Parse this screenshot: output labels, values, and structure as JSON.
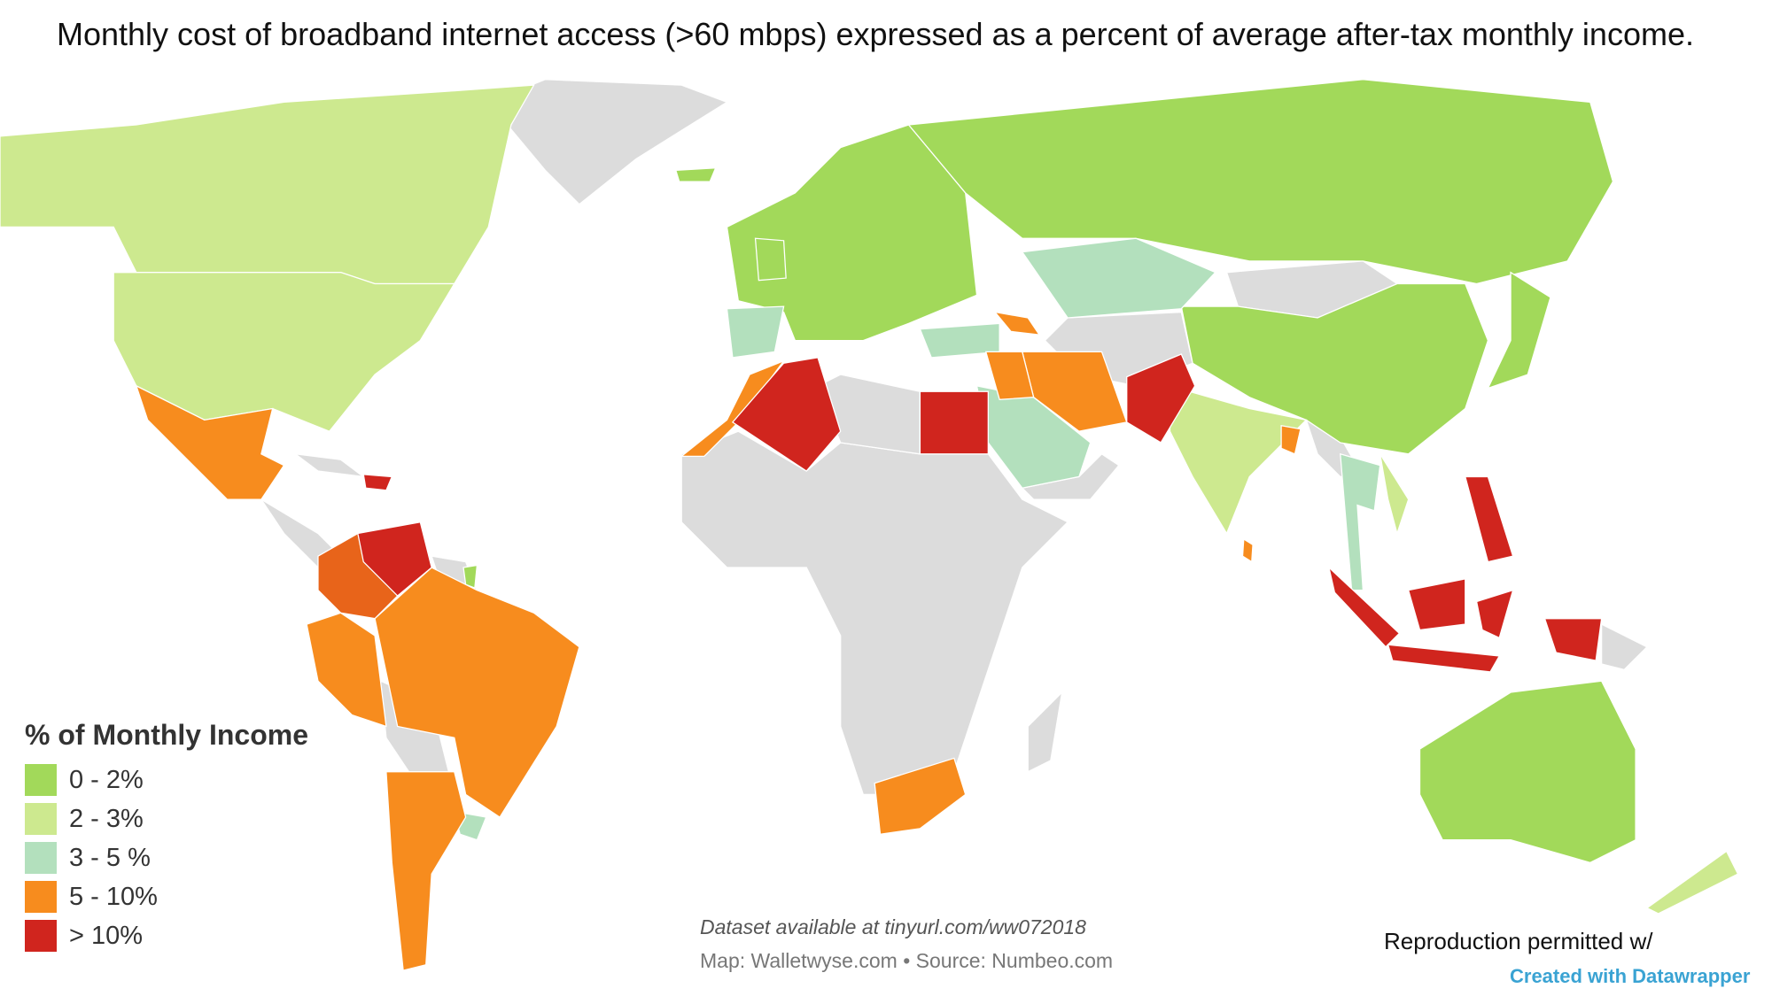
{
  "title": "Monthly cost of broadband internet access (>60 mbps) expressed as a percent of average after-tax monthly income.",
  "chart_data": {
    "type": "choropleth",
    "title": "Monthly cost of broadband internet access (>60 mbps) expressed as a percent of average after-tax monthly income.",
    "legend_title": "% of Monthly Income",
    "legend_placement": "bottom-left",
    "bins": [
      {
        "label": "0 - 2%",
        "color": "#a2d95a"
      },
      {
        "label": "2 - 3%",
        "color": "#cde98f"
      },
      {
        "label": "3 - 5 %",
        "color": "#b3e0bd"
      },
      {
        "label": "5 - 10%",
        "color": "#f78c1e"
      },
      {
        "label": "> 10%",
        "color": "#d0251e"
      }
    ],
    "no_data_color": "#dcdcdc"
  },
  "footer": {
    "dataset": "Dataset available at tinyurl.com/ww072018",
    "source": "Map: Walletwyse.com • Source: Numbeo.com",
    "reproduction": "Reproduction permitted w/",
    "credit": "Created with Datawrapper"
  }
}
